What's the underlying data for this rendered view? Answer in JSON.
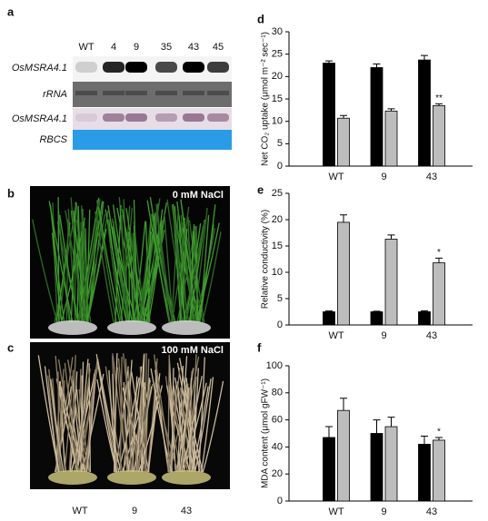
{
  "panel_a": {
    "label": "a",
    "lanes": [
      "WT",
      "4",
      "9",
      "35",
      "43",
      "45"
    ],
    "rows": [
      "OsMSRA4.1",
      "rRNA",
      "OsMSRA4.1",
      "RBCS"
    ]
  },
  "panel_b": {
    "label": "b",
    "treatment": "0 mM NaCl"
  },
  "panel_c": {
    "label": "c",
    "treatment": "100 mM NaCl",
    "genotypes": [
      "WT",
      "9",
      "43"
    ]
  },
  "chart_data": [
    {
      "type": "bar",
      "label": "d",
      "y_label": "Net CO₂ uptake (μmol m⁻² sec⁻¹)",
      "categories": [
        "WT",
        "9",
        "43"
      ],
      "series": [
        {
          "color": "#000000",
          "values": [
            23,
            22,
            23.7
          ],
          "errors": [
            0.5,
            0.8,
            1
          ]
        },
        {
          "color": "#bdbdbd",
          "values": [
            10.7,
            12.3,
            13.5
          ],
          "errors": [
            0.6,
            0.5,
            0.4
          ]
        }
      ],
      "ylim": [
        0,
        30
      ],
      "yticks": [
        0,
        5,
        10,
        15,
        20,
        25,
        30
      ],
      "annotations": [
        {
          "text": "**",
          "x": "43"
        }
      ]
    },
    {
      "type": "bar",
      "label": "e",
      "y_label": "Relative conductivity (%)",
      "categories": [
        "WT",
        "9",
        "43"
      ],
      "series": [
        {
          "color": "#000000",
          "values": [
            2.5,
            2.5,
            2.5
          ],
          "errors": [
            0.15,
            0.1,
            0.2
          ]
        },
        {
          "color": "#bdbdbd",
          "values": [
            19.5,
            16.3,
            11.8
          ],
          "errors": [
            1.4,
            0.8,
            0.9
          ]
        }
      ],
      "ylim": [
        0,
        25
      ],
      "yticks": [
        0,
        5,
        10,
        15,
        20,
        25
      ],
      "annotations": [
        {
          "text": "*",
          "x": "43"
        }
      ]
    },
    {
      "type": "bar",
      "label": "f",
      "y_label": "MDA content (μmol gFW⁻¹)",
      "categories": [
        "WT",
        "9",
        "43"
      ],
      "series": [
        {
          "color": "#000000",
          "values": [
            47,
            50,
            42
          ],
          "errors": [
            8,
            10,
            6
          ]
        },
        {
          "color": "#bdbdbd",
          "values": [
            67,
            55,
            45
          ],
          "errors": [
            9,
            7,
            2
          ]
        }
      ],
      "ylim": [
        0,
        100
      ],
      "yticks": [
        0,
        20,
        40,
        60,
        80,
        100
      ],
      "annotations": [
        {
          "text": "*",
          "x": "43"
        }
      ]
    }
  ]
}
